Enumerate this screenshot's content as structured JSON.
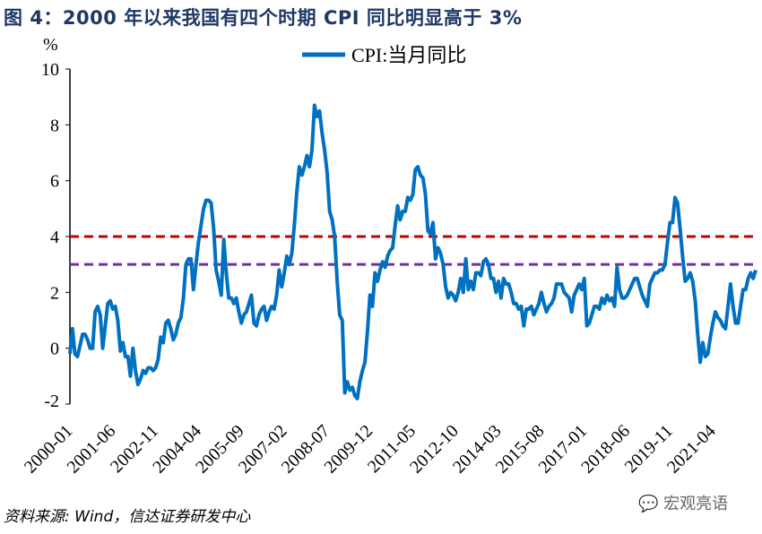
{
  "title": "图 4：2000 年以来我国有四个时期 CPI 同比明显高于 3%",
  "source": "资料来源: Wind，信达证券研发中心",
  "watermark": "宏观亮语",
  "chart_data": {
    "type": "line",
    "title": "图 4：2000 年以来我国有四个时期 CPI 同比明显高于 3%",
    "ylabel": "%",
    "xlabel": "",
    "ylim": [
      -2,
      10
    ],
    "yticks": [
      -2,
      0,
      2,
      4,
      6,
      8,
      10
    ],
    "xtick_labels": [
      "2000-01",
      "2001-06",
      "2002-11",
      "2004-04",
      "2005-09",
      "2007-02",
      "2008-07",
      "2009-12",
      "2011-05",
      "2012-10",
      "2014-03",
      "2015-08",
      "2017-01",
      "2018-06",
      "2019-11",
      "2021-04"
    ],
    "start": "2000-01",
    "frequency": "monthly",
    "legend": "top-center",
    "reference_lines": [
      {
        "value": 4,
        "color": "#C00000",
        "style": "dashed"
      },
      {
        "value": 3,
        "color": "#7030A0",
        "style": "dashed"
      }
    ],
    "series": [
      {
        "name": "CPI:当月同比",
        "color": "#0070C0",
        "values": [
          -0.2,
          0.7,
          -0.2,
          -0.3,
          0.1,
          0.5,
          0.5,
          0.3,
          0,
          0,
          1.3,
          1.5,
          1.2,
          0,
          0.8,
          1.6,
          1.7,
          1.4,
          1.5,
          1,
          -0.1,
          0.2,
          -0.3,
          -0.3,
          -1,
          0,
          -0.8,
          -1.3,
          -1.1,
          -0.8,
          -0.9,
          -0.7,
          -0.7,
          -0.8,
          -0.7,
          -0.4,
          0.4,
          0.2,
          0.9,
          1,
          0.7,
          0.3,
          0.5,
          0.9,
          1.1,
          1.8,
          3,
          3.2,
          3.2,
          2.1,
          3,
          3.8,
          4.4,
          5,
          5.3,
          5.3,
          5.2,
          4.3,
          2.8,
          2.4,
          1.9,
          3.9,
          2.7,
          1.8,
          1.8,
          1.6,
          1.8,
          1.3,
          0.9,
          1.2,
          1.3,
          1.6,
          1.9,
          0.9,
          0.8,
          1.2,
          1.4,
          1.5,
          1,
          1.3,
          1.5,
          1.4,
          1.9,
          2.8,
          2.2,
          2.7,
          3.3,
          3,
          3.4,
          4.4,
          5.6,
          6.5,
          6.2,
          6.5,
          6.9,
          6.5,
          7.1,
          8.7,
          8.3,
          8.5,
          7.7,
          7.1,
          6.3,
          4.9,
          4.6,
          4,
          2.4,
          1.2,
          1,
          -1.6,
          -1.2,
          -1.5,
          -1.4,
          -1.7,
          -1.8,
          -1.2,
          -0.8,
          -0.5,
          0.6,
          1.9,
          1.5,
          2.7,
          2.4,
          2.8,
          3.1,
          2.9,
          3.3,
          3.5,
          3.6,
          4.4,
          5.1,
          4.6,
          4.9,
          4.9,
          5.4,
          5.3,
          5.5,
          6.4,
          6.5,
          6.2,
          6.1,
          5.5,
          4.2,
          4.1,
          4.5,
          3.2,
          3.6,
          3.4,
          3,
          2.2,
          1.8,
          2,
          1.9,
          1.7,
          2,
          2.5,
          2,
          3.2,
          2.1,
          2.4,
          2.1,
          2.7,
          2.7,
          2.6,
          3.1,
          3.2,
          3,
          2.5,
          2.5,
          2,
          2.4,
          1.8,
          2.5,
          2.3,
          2.3,
          2,
          1.6,
          1.6,
          1.4,
          1.5,
          0.8,
          1.4,
          1.4,
          1.5,
          1.2,
          1.4,
          1.6,
          2,
          1.6,
          1.3,
          1.5,
          1.6,
          1.8,
          2.3,
          2.3,
          2.3,
          2,
          1.9,
          1.8,
          1.3,
          1.9,
          2.1,
          2.3,
          2.1,
          2.5,
          0.8,
          0.9,
          1.2,
          1.5,
          1.5,
          1.4,
          1.8,
          1.6,
          1.9,
          1.7,
          1.8,
          1.5,
          2.9,
          2.1,
          1.8,
          1.8,
          1.9,
          2.1,
          2.3,
          2.5,
          2.5,
          2.2,
          1.9,
          1.7,
          1.5,
          2.3,
          2.5,
          2.7,
          2.7,
          2.8,
          2.8,
          3,
          3.8,
          4.5,
          4.5,
          5.4,
          5.2,
          4.3,
          3.3,
          2.4,
          2.5,
          2.7,
          2.4,
          1.7,
          0.5,
          -0.5,
          0.2,
          -0.3,
          -0.2,
          0.4,
          0.9,
          1.3,
          1.1,
          1,
          0.8,
          0.7,
          1.5,
          2.3,
          1.5,
          0.9,
          0.9,
          1.5,
          2.1,
          2.1,
          2.5,
          2.7,
          2.5,
          2.8
        ]
      }
    ]
  }
}
